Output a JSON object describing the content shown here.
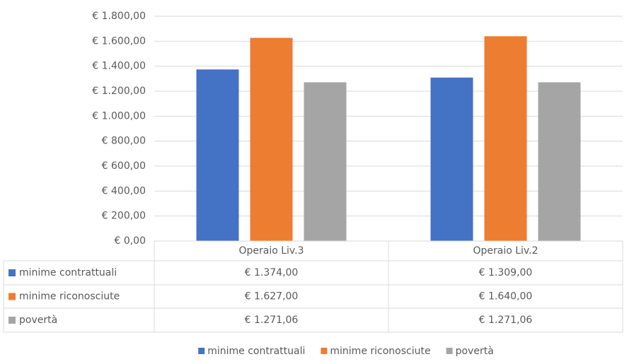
{
  "chart_data": {
    "type": "bar",
    "categories": [
      "Operaio Liv.3",
      "Operaio Liv.2"
    ],
    "series": [
      {
        "name": "minime contrattuali",
        "color": "#4472c4",
        "values": [
          1374,
          1309
        ],
        "value_labels": [
          "€ 1.374,00",
          "€ 1.309,00"
        ]
      },
      {
        "name": "minime riconosciute",
        "color": "#ed7d31",
        "values": [
          1627,
          1640
        ],
        "value_labels": [
          "€ 1.627,00",
          "€ 1.640,00"
        ]
      },
      {
        "name": "povertà",
        "color": "#a5a5a5",
        "values": [
          1271.06,
          1271.06
        ],
        "value_labels": [
          "€ 1.271,06",
          "€ 1.271,06"
        ]
      }
    ],
    "ylim": [
      0,
      1800
    ],
    "yticks": [
      {
        "value": 0,
        "label": "€ 0,00"
      },
      {
        "value": 200,
        "label": "€ 200,00"
      },
      {
        "value": 400,
        "label": "€ 400,00"
      },
      {
        "value": 600,
        "label": "€ 600,00"
      },
      {
        "value": 800,
        "label": "€ 800,00"
      },
      {
        "value": 1000,
        "label": "€ 1.000,00"
      },
      {
        "value": 1200,
        "label": "€ 1.200,00"
      },
      {
        "value": 1400,
        "label": "€ 1.400,00"
      },
      {
        "value": 1600,
        "label": "€ 1.600,00"
      },
      {
        "value": 1800,
        "label": "€ 1.800,00"
      }
    ],
    "grid": true,
    "legend": "bottom"
  }
}
